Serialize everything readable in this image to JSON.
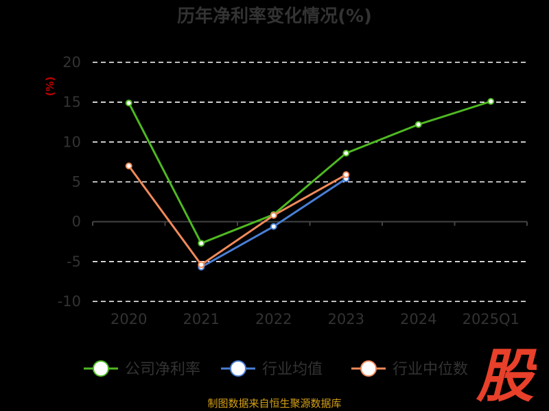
{
  "chart_data": {
    "type": "line",
    "title": "历年净利率变化情况(%)",
    "ylabel": "(%)",
    "categories": [
      "2020",
      "2021",
      "2022",
      "2023",
      "2024",
      "2025Q1"
    ],
    "ylim": [
      -10,
      20
    ],
    "yticks": [
      -10,
      -5,
      0,
      5,
      10,
      15,
      20
    ],
    "grid": true,
    "legend_position": "bottom",
    "series": [
      {
        "name": "公司净利率",
        "color": "#4fb922",
        "values": [
          14.9,
          -2.7,
          0.9,
          8.6,
          12.2,
          15.1
        ]
      },
      {
        "name": "行业均值",
        "color": "#4a7fd6",
        "values": [
          null,
          -5.7,
          -0.6,
          5.4,
          null,
          null
        ]
      },
      {
        "name": "行业中位数",
        "color": "#f08a5a",
        "values": [
          7.0,
          -5.4,
          0.8,
          5.9,
          null,
          null
        ]
      }
    ]
  },
  "source": "制图数据来自恒生聚源数据库",
  "logo": {
    "text": "股",
    "color": "#e8402a"
  }
}
